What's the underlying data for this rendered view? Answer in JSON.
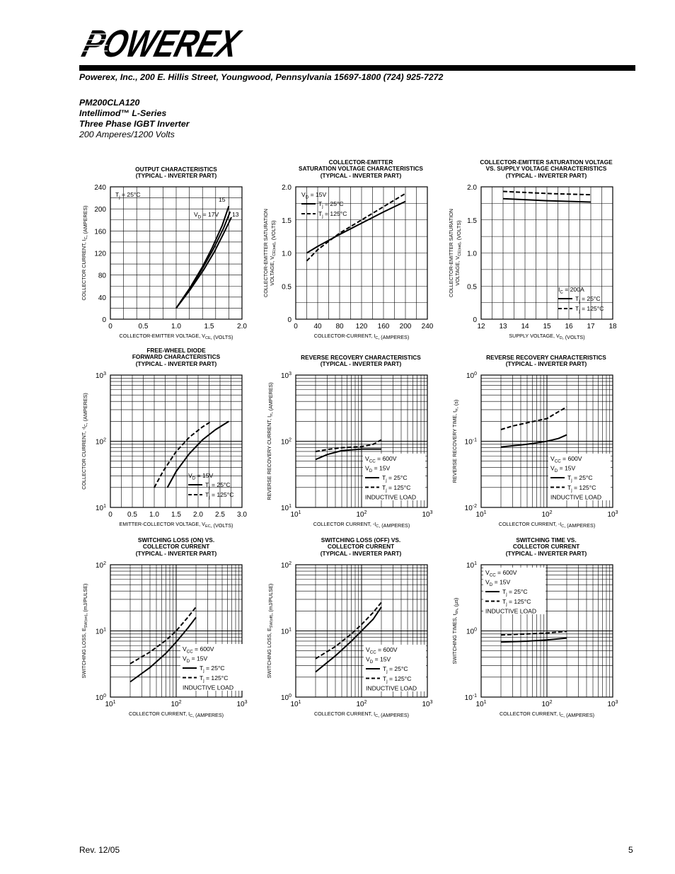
{
  "header": {
    "logo_text": "POWEREX",
    "address": "Powerex, Inc., 200 E. Hillis Street, Youngwood, Pennsylvania 15697-1800 (724) 925-7272",
    "part_number": "PM200CLA120",
    "series": "Intellimod™ L-Series",
    "description": "Three Phase IGBT Inverter",
    "rating": "200 Amperes/1200 Volts"
  },
  "footer": {
    "revision": "Rev. 12/05",
    "page": "5"
  },
  "charts": {
    "c1": {
      "title": [
        "OUTPUT CHARACTERISTICS",
        "(TYPICAL - INVERTER PART)"
      ]
    },
    "c2": {
      "title": [
        "COLLECTOR-EMITTER",
        "SATURATION VOLTAGE CHARACTERISTICS",
        "(TYPICAL - INVERTER PART)"
      ]
    },
    "c3": {
      "title": [
        "COLLECTOR-EMITTER SATURATION VOLTAGE",
        "VS. SUPPLY VOLTAGE CHARACTERISTICS",
        "(TYPICAL - INVERTER PART)"
      ]
    },
    "c4": {
      "title": [
        "FREE-WHEEL DIODE",
        "FORWARD CHARACTERISTICS",
        "(TYPICAL - INVERTER PART)"
      ]
    },
    "c5": {
      "title": [
        "REVERSE RECOVERY CHARACTERISTICS",
        "(TYPICAL - INVERTER PART)"
      ]
    },
    "c6": {
      "title": [
        "REVERSE RECOVERY CHARACTERISTICS",
        "(TYPICAL - INVERTER PART)"
      ]
    },
    "c7": {
      "title": [
        "SWITCHING LOSS (ON) VS.",
        "COLLECTOR CURRENT",
        "(TYPICAL - INVERTER PART)"
      ]
    },
    "c8": {
      "title": [
        "SWITCHING LOSS (OFF) VS.",
        "COLLECTOR CURRENT",
        "(TYPICAL - INVERTER PART)"
      ]
    },
    "c9": {
      "title": [
        "SWITCHING TIME VS.",
        "COLLECTOR CURRENT",
        "(TYPICAL - INVERTER PART)"
      ]
    }
  },
  "chart_data": [
    {
      "id": "c1",
      "type": "line",
      "xlabel": "COLLECTOR-EMITTER VOLTAGE, VCE, (VOLTS)",
      "ylabel": "COLLECTOR CURRENT, IC, (AMPERES)",
      "xlim": [
        0,
        2.0
      ],
      "ylim": [
        0,
        240
      ],
      "xticks": [
        "0",
        "0.5",
        "1.0",
        "1.5",
        "2.0"
      ],
      "yticks": [
        "0",
        "40",
        "80",
        "120",
        "160",
        "200",
        "240"
      ],
      "annotations": [
        "Tj = 25°C",
        "VD = 17V",
        "15",
        "13"
      ],
      "series": [
        {
          "name": "VD = 17V",
          "style": "solid",
          "x": [
            1.0,
            1.2,
            1.4,
            1.55,
            1.7,
            1.8
          ],
          "y": [
            20,
            55,
            95,
            130,
            170,
            205
          ]
        },
        {
          "name": "15",
          "style": "solid",
          "x": [
            1.0,
            1.2,
            1.4,
            1.56,
            1.72,
            1.82
          ],
          "y": [
            20,
            54,
            92,
            126,
            165,
            195
          ]
        },
        {
          "name": "13",
          "style": "solid",
          "x": [
            1.0,
            1.21,
            1.42,
            1.58,
            1.74,
            1.84
          ],
          "y": [
            20,
            53,
            90,
            122,
            160,
            185
          ]
        }
      ]
    },
    {
      "id": "c2",
      "type": "line",
      "xlabel": "COLLECTOR-CURRENT, IC, (AMPERES)",
      "ylabel": "COLLECTOR-EMITTER SATURATION VOLTAGE, VCE(sat), (VOLTS)",
      "xlim": [
        0,
        240
      ],
      "ylim": [
        0,
        2.0
      ],
      "xticks": [
        "0",
        "40",
        "80",
        "120",
        "160",
        "200",
        "240"
      ],
      "yticks": [
        "0",
        "0.5",
        "1.0",
        "1.5",
        "2.0"
      ],
      "legend": [
        "VD = 15V",
        "Tj = 25°C",
        "Tj = 125°C"
      ],
      "series": [
        {
          "name": "Tj = 25°C",
          "style": "solid",
          "x": [
            20,
            40,
            80,
            120,
            160,
            200
          ],
          "y": [
            1.0,
            1.1,
            1.28,
            1.45,
            1.62,
            1.78
          ]
        },
        {
          "name": "Tj = 125°C",
          "style": "dashed",
          "x": [
            20,
            40,
            80,
            120,
            160,
            200
          ],
          "y": [
            0.88,
            1.05,
            1.3,
            1.5,
            1.7,
            1.9
          ]
        }
      ]
    },
    {
      "id": "c3",
      "type": "line",
      "xlabel": "SUPPLY VOLTAGE, VD, (VOLTS)",
      "ylabel": "COLLECTOR-EMITTER SATURATION VOLTAGE, VCE(sat), (VOLTS)",
      "xlim": [
        12,
        18
      ],
      "ylim": [
        0,
        2.0
      ],
      "xticks": [
        "12",
        "13",
        "14",
        "15",
        "16",
        "17",
        "18"
      ],
      "yticks": [
        "0",
        "0.5",
        "1.0",
        "1.5",
        "2.0"
      ],
      "legend": [
        "IC = 200A",
        "Tj = 25°C",
        "Tj = 125°C"
      ],
      "series": [
        {
          "name": "Tj = 25°C",
          "style": "solid",
          "x": [
            13,
            15,
            17
          ],
          "y": [
            1.82,
            1.79,
            1.77
          ]
        },
        {
          "name": "Tj = 125°C",
          "style": "dashed",
          "x": [
            13,
            15,
            17
          ],
          "y": [
            1.93,
            1.9,
            1.88
          ]
        }
      ]
    },
    {
      "id": "c4",
      "type": "line",
      "xlabel": "EMITTER-COLLECTOR VOLTAGE, VEC, (VOLTS)",
      "ylabel": "COLLECTOR CURRENT, -IC, (AMPERES)",
      "xlim": [
        0,
        3.0
      ],
      "ylim": [
        10,
        1000
      ],
      "yscale": "log",
      "xticks": [
        "0",
        "0.5",
        "1.0",
        "1.5",
        "2.0",
        "2.5",
        "3.0"
      ],
      "yticks": [
        "10^1",
        "10^2",
        "10^3"
      ],
      "legend": [
        "VD = 15V",
        "Tj = 25°C",
        "Tj = 125°C"
      ],
      "series": [
        {
          "name": "Tj = 25°C",
          "style": "solid",
          "x": [
            1.3,
            1.5,
            1.8,
            2.1,
            2.4,
            2.7
          ],
          "y": [
            20,
            35,
            65,
            105,
            150,
            200
          ]
        },
        {
          "name": "Tj = 125°C",
          "style": "dashed",
          "x": [
            1.0,
            1.2,
            1.5,
            1.8,
            2.1,
            2.3
          ],
          "y": [
            20,
            35,
            70,
            115,
            165,
            200
          ]
        }
      ]
    },
    {
      "id": "c5",
      "type": "line",
      "xlabel": "COLLECTOR CURRENT, -IC, (AMPERES)",
      "ylabel": "REVERSE RECOVERY CURRENT, Irr, (AMPERES)",
      "xlim": [
        10,
        1000
      ],
      "ylim": [
        10,
        1000
      ],
      "xscale": "log",
      "yscale": "log",
      "xticks": [
        "10^1",
        "10^2",
        "10^3"
      ],
      "yticks": [
        "10^1",
        "10^2",
        "10^3"
      ],
      "legend": [
        "VCC = 600V",
        "VD = 15V",
        "Tj = 25°C",
        "Tj = 125°C",
        "INDUCTIVE LOAD"
      ],
      "series": [
        {
          "name": "Tj = 25°C",
          "style": "solid",
          "x": [
            20,
            30,
            50,
            100,
            200
          ],
          "y": [
            53,
            63,
            72,
            76,
            76
          ]
        },
        {
          "name": "Tj = 125°C",
          "style": "dashed",
          "x": [
            20,
            30,
            50,
            100,
            150,
            200
          ],
          "y": [
            70,
            75,
            80,
            83,
            90,
            105
          ]
        }
      ]
    },
    {
      "id": "c6",
      "type": "line",
      "xlabel": "COLLECTOR CURRENT, -IC, (AMPERES)",
      "ylabel": "REVERSE RECOVERY TIME, trr, (s)",
      "xlim": [
        10,
        1000
      ],
      "ylim": [
        0.01,
        1
      ],
      "xscale": "log",
      "yscale": "log",
      "xticks": [
        "10^1",
        "10^2",
        "10^3"
      ],
      "yticks": [
        "10^-2",
        "10^-1",
        "10^0"
      ],
      "legend": [
        "VCC = 600V",
        "VD = 15V",
        "Tj = 25°C",
        "Tj = 125°C",
        "INDUCTIVE LOAD"
      ],
      "series": [
        {
          "name": "Tj = 25°C",
          "style": "solid",
          "x": [
            20,
            50,
            100,
            150,
            200
          ],
          "y": [
            0.082,
            0.09,
            0.1,
            0.11,
            0.125
          ]
        },
        {
          "name": "Tj = 125°C",
          "style": "dashed",
          "x": [
            20,
            30,
            50,
            100,
            150,
            200
          ],
          "y": [
            0.15,
            0.17,
            0.19,
            0.22,
            0.28,
            0.33
          ]
        }
      ]
    },
    {
      "id": "c7",
      "type": "line",
      "xlabel": "COLLECTOR CURRENT, IC, (AMPERES)",
      "ylabel": "SWITCHING LOSS, ESW(on), (mJ/PULSE)",
      "xlim": [
        10,
        1000
      ],
      "ylim": [
        1,
        100
      ],
      "xscale": "log",
      "yscale": "log",
      "xticks": [
        "10^1",
        "10^2",
        "10^3"
      ],
      "yticks": [
        "10^0",
        "10^1",
        "10^2"
      ],
      "legend": [
        "VCC = 600V",
        "VD = 15V",
        "Tj = 25°C",
        "Tj = 125°C",
        "INDUCTIVE LOAD"
      ],
      "series": [
        {
          "name": "Tj = 25°C",
          "style": "solid",
          "x": [
            20,
            40,
            70,
            100,
            150,
            200
          ],
          "y": [
            1.7,
            2.8,
            4.6,
            6.8,
            11,
            16
          ]
        },
        {
          "name": "Tj = 125°C",
          "style": "dashed",
          "x": [
            20,
            40,
            70,
            100,
            150,
            200
          ],
          "y": [
            3.2,
            4.8,
            7.2,
            10,
            16,
            23
          ]
        }
      ]
    },
    {
      "id": "c8",
      "type": "line",
      "xlabel": "COLLECTOR CURRENT, IC, (AMPERES)",
      "ylabel": "SWITCHING LOSS, ESW(off), (mJ/PULSE)",
      "xlim": [
        10,
        1000
      ],
      "ylim": [
        1,
        100
      ],
      "xscale": "log",
      "yscale": "log",
      "xticks": [
        "10^1",
        "10^2",
        "10^3"
      ],
      "yticks": [
        "10^0",
        "10^1",
        "10^2"
      ],
      "legend": [
        "VCC = 600V",
        "VD = 15V",
        "Tj = 25°C",
        "Tj = 125°C",
        "INDUCTIVE LOAD"
      ],
      "series": [
        {
          "name": "Tj = 25°C",
          "style": "solid",
          "x": [
            20,
            40,
            70,
            100,
            150,
            200
          ],
          "y": [
            2.4,
            4.2,
            7.0,
            10,
            15,
            23
          ]
        },
        {
          "name": "Tj = 125°C",
          "style": "dashed",
          "x": [
            20,
            40,
            70,
            100,
            150,
            200
          ],
          "y": [
            3.8,
            5.8,
            9.0,
            12.5,
            19,
            27
          ]
        }
      ]
    },
    {
      "id": "c9",
      "type": "line",
      "xlabel": "COLLECTOR CURRENT, IC, (AMPERES)",
      "ylabel": "SWITCHING TIMES, tdn, (µs)",
      "xlim": [
        10,
        1000
      ],
      "ylim": [
        0.1,
        10
      ],
      "xscale": "log",
      "yscale": "log",
      "xticks": [
        "10^1",
        "10^2",
        "10^3"
      ],
      "yticks": [
        "10^-1",
        "10^0",
        "10^1"
      ],
      "legend": [
        "VCC = 600V",
        "VD = 15V",
        "Tj = 25°C",
        "Tj = 125°C",
        "INDUCTIVE LOAD"
      ],
      "series": [
        {
          "name": "Tj = 25°C",
          "style": "solid",
          "x": [
            20,
            50,
            100,
            200
          ],
          "y": [
            0.68,
            0.7,
            0.73,
            0.78
          ]
        },
        {
          "name": "Tj = 125°C",
          "style": "dashed",
          "x": [
            20,
            50,
            100,
            200
          ],
          "y": [
            0.87,
            0.9,
            0.93,
            0.98
          ]
        }
      ]
    }
  ]
}
